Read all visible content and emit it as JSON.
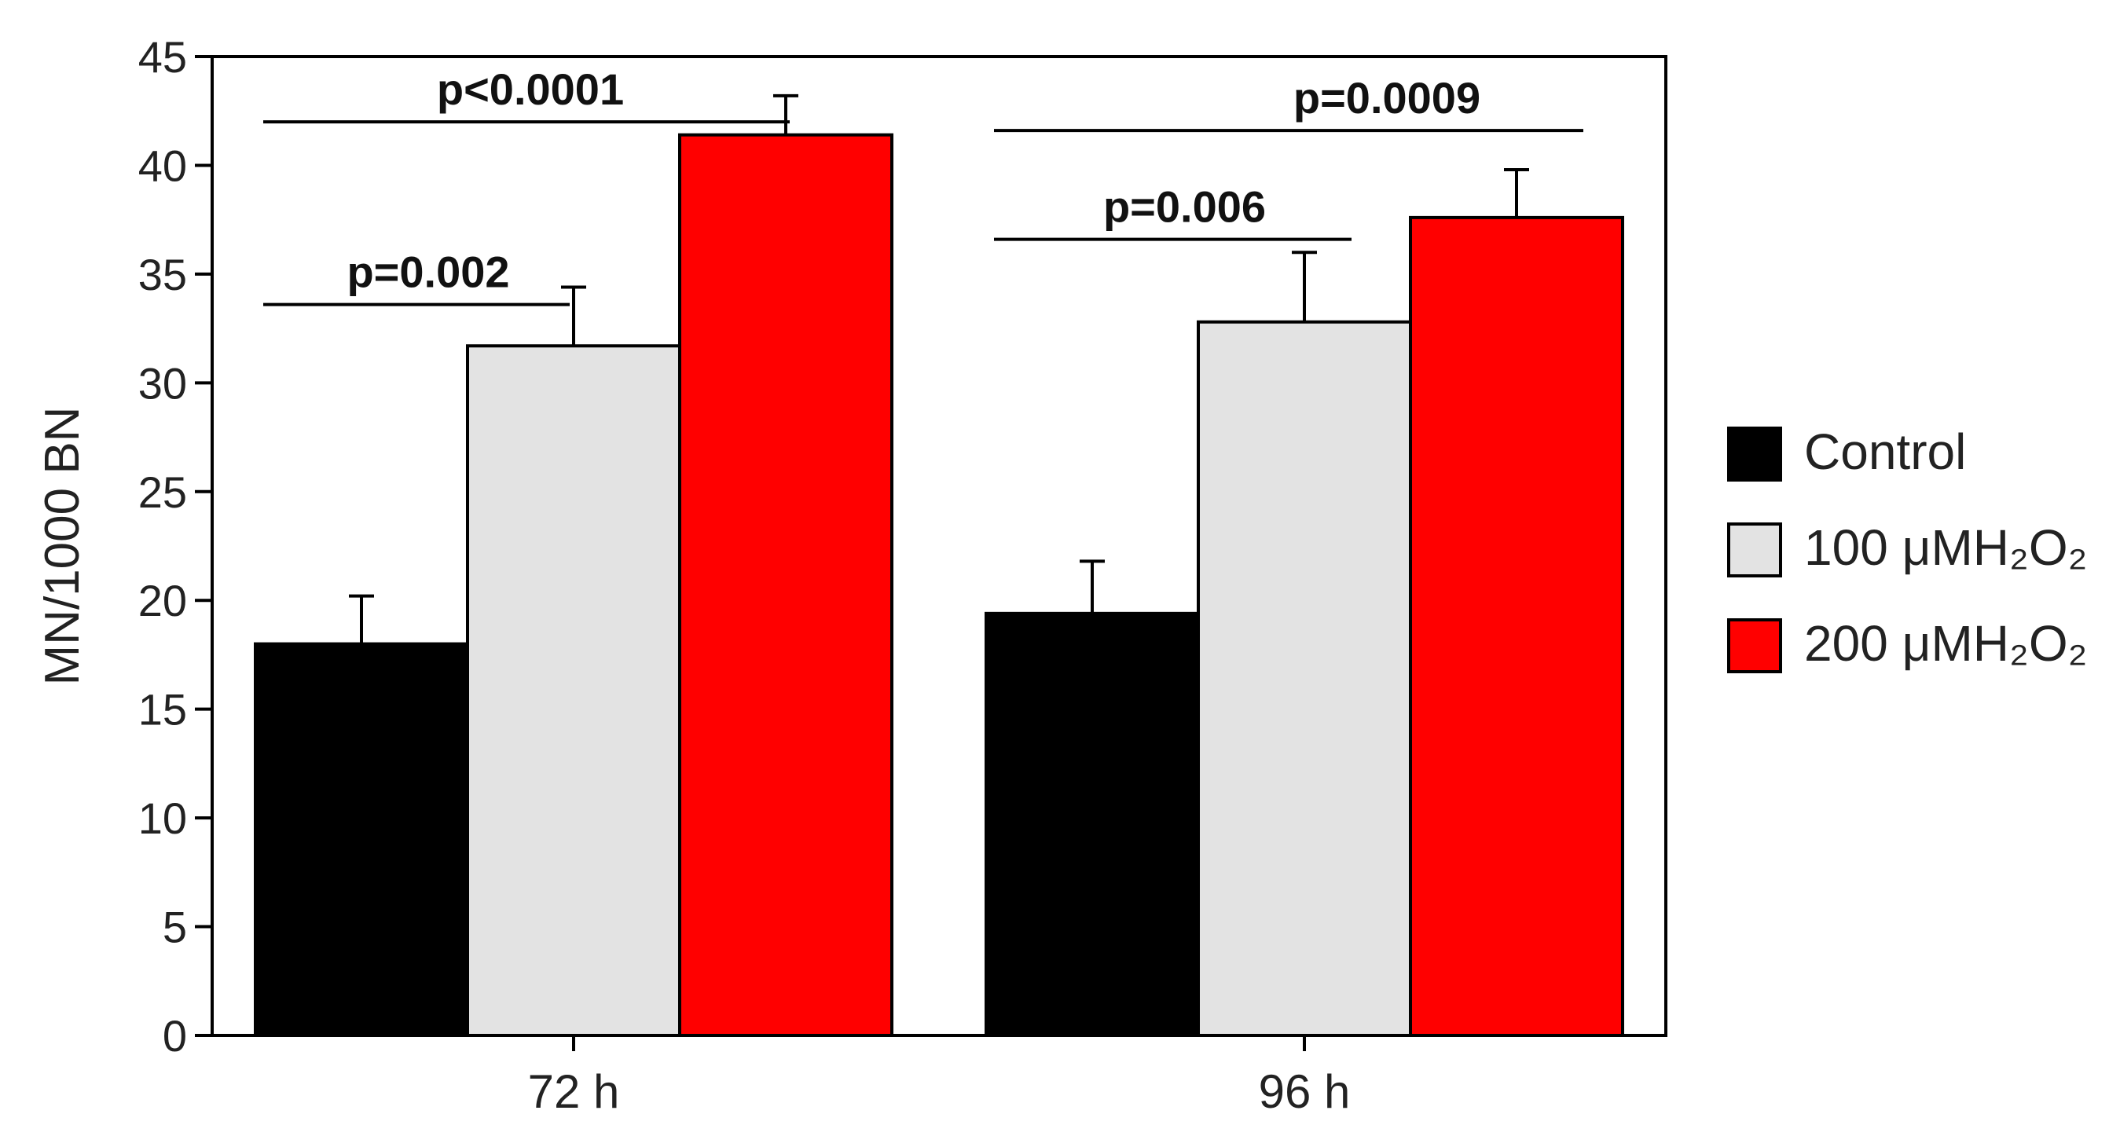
{
  "chart_data": {
    "type": "bar",
    "title": "",
    "xlabel": "",
    "ylabel": "MN/1000 BN",
    "ylim": [
      0,
      45
    ],
    "yticks": [
      0,
      5,
      10,
      15,
      20,
      25,
      30,
      35,
      40,
      45
    ],
    "categories": [
      "72 h",
      "96 h"
    ],
    "series": [
      {
        "name": "Control",
        "values": [
          18.0,
          19.4
        ],
        "errors": [
          2.2,
          2.4
        ],
        "color": "#000000"
      },
      {
        "name": "100 μMH₂O₂",
        "values": [
          31.7,
          32.8
        ],
        "errors": [
          2.7,
          3.2
        ],
        "color": "#e3e3e3"
      },
      {
        "name": "200 μMH₂O₂",
        "values": [
          41.4,
          37.6
        ],
        "errors": [
          1.8,
          2.2
        ],
        "color": "#ff0000"
      }
    ],
    "annotations": [
      {
        "text": "p<0.0001",
        "category": "72 h",
        "from_series": 0,
        "to_series": 2,
        "y": 42.0
      },
      {
        "text": "p=0.002",
        "category": "72 h",
        "from_series": 0,
        "to_series": 1,
        "y": 33.6
      },
      {
        "text": "p=0.0009",
        "category": "96 h",
        "from_series": 0,
        "to_series": 2,
        "y": 41.6
      },
      {
        "text": "p=0.006",
        "category": "96 h",
        "from_series": 0,
        "to_series": 1,
        "y": 36.6
      }
    ],
    "legend": {
      "position": "right"
    },
    "grid": false
  }
}
